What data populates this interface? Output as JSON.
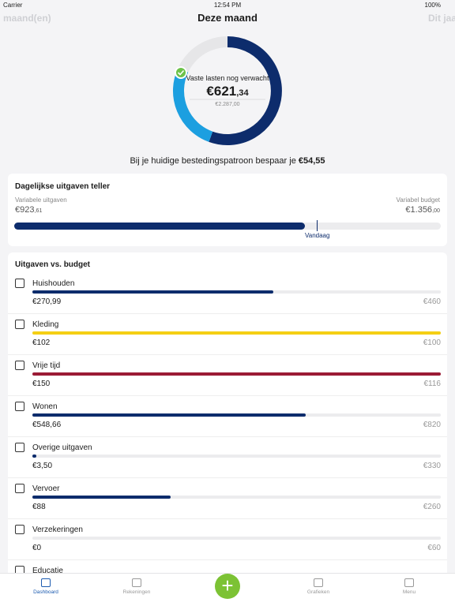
{
  "status": {
    "carrier": "Carrier",
    "time": "12:54 PM",
    "battery": "100%"
  },
  "header": {
    "prev": "maand(en)",
    "title": "Deze maand",
    "next": "Dit jaar"
  },
  "summary": {
    "label": "Vaste lasten nog verwacht",
    "amount": "€621,34",
    "total": "€2.287,00",
    "savings_text": "Bij je huidige bestedingspatroon bespaar je",
    "savings_amount": "€54,55"
  },
  "daily": {
    "title": "Dagelijkse uitgaven teller",
    "spent_caption": "Variabele uitgaven",
    "budget_caption": "Variabel budget",
    "spent": 923.61,
    "spent_label": "€923,61",
    "budget": 1356,
    "budget_label": "€1.356,00",
    "today": "Vandaag"
  },
  "budget": {
    "title": "Uitgaven vs. budget",
    "items": [
      {
        "name": "Huishouden",
        "spent": 270.99,
        "spent_label": "€270,99",
        "budget": 460,
        "budget_label": "€460",
        "color": "#0d2c6c"
      },
      {
        "name": "Kleding",
        "spent": 102,
        "spent_label": "€102",
        "budget": 100,
        "budget_label": "€100",
        "color": "#f5cf14"
      },
      {
        "name": "Vrije tijd",
        "spent": 150,
        "spent_label": "€150",
        "budget": 116,
        "budget_label": "€116",
        "color": "#9b1b35"
      },
      {
        "name": "Wonen",
        "spent": 548.66,
        "spent_label": "€548,66",
        "budget": 820,
        "budget_label": "€820",
        "color": "#0d2c6c"
      },
      {
        "name": "Overige uitgaven",
        "spent": 3.5,
        "spent_label": "€3,50",
        "budget": 330,
        "budget_label": "€330",
        "color": "#0d2c6c"
      },
      {
        "name": "Vervoer",
        "spent": 88,
        "spent_label": "€88",
        "budget": 260,
        "budget_label": "€260",
        "color": "#0d2c6c"
      },
      {
        "name": "Verzekeringen",
        "spent": 0,
        "spent_label": "€0",
        "budget": 60,
        "budget_label": "€60",
        "color": "#0d2c6c"
      },
      {
        "name": "Educatie"
      }
    ]
  },
  "nav": [
    "Dashboard",
    "Rekeningen",
    "Grafieken",
    "Menu"
  ]
}
